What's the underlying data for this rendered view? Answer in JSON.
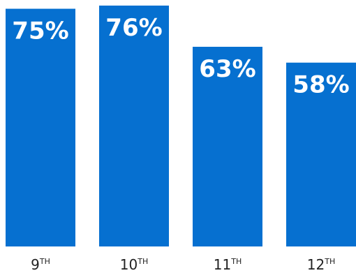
{
  "chart_data": {
    "type": "bar",
    "categories": [
      {
        "base": "9",
        "sup": "TH"
      },
      {
        "base": "10",
        "sup": "TH"
      },
      {
        "base": "11",
        "sup": "TH"
      },
      {
        "base": "12",
        "sup": "TH"
      }
    ],
    "values": [
      75,
      76,
      63,
      58
    ],
    "data_labels": [
      "75%",
      "76%",
      "63%",
      "58%"
    ],
    "title": "",
    "xlabel": "",
    "ylabel": "",
    "ylim": [
      0,
      76
    ],
    "grid": false,
    "legend": "none",
    "bar_color": "#0670D0",
    "label_color": "#FFFFFF",
    "tick_color": "#222222"
  }
}
